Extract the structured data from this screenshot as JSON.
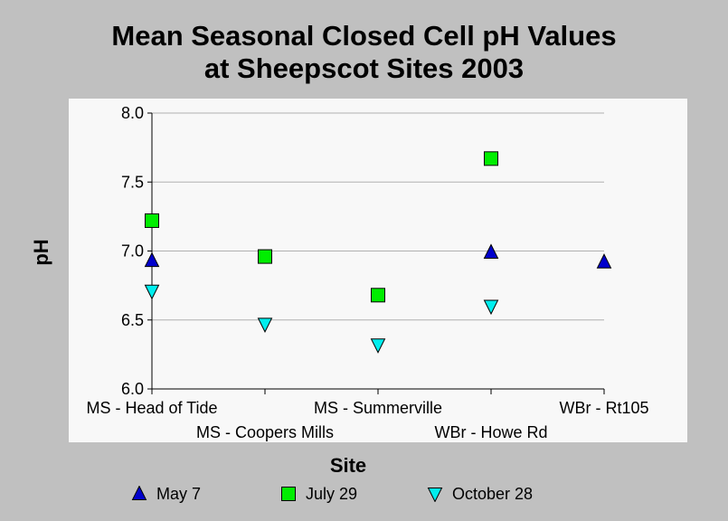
{
  "chart_data": {
    "type": "scatter",
    "title_lines": [
      "Mean Seasonal Closed Cell pH Values",
      "at Sheepscot Sites 2003"
    ],
    "xlabel": "Site",
    "ylabel": "pH",
    "categories": [
      "MS - Head of Tide",
      "MS - Coopers Mills",
      "MS - Summerville",
      "WBr - Howe Rd",
      "WBr - Rt105"
    ],
    "yticks": [
      "6.0",
      "6.5",
      "7.0",
      "7.5",
      "8.0"
    ],
    "ylim": [
      6.0,
      8.0
    ],
    "grid": true,
    "legend_position": "bottom",
    "series": [
      {
        "name": "May 7",
        "marker": "triangle-up",
        "color": "#0000cc",
        "values": [
          6.93,
          null,
          null,
          6.99,
          6.92
        ]
      },
      {
        "name": "July 29",
        "marker": "square",
        "color": "#00ee00",
        "values": [
          7.22,
          6.96,
          6.68,
          7.67,
          null
        ]
      },
      {
        "name": "October 28",
        "marker": "triangle-down",
        "color": "#00eeee",
        "values": [
          6.71,
          6.47,
          6.32,
          6.6,
          null
        ]
      }
    ]
  }
}
